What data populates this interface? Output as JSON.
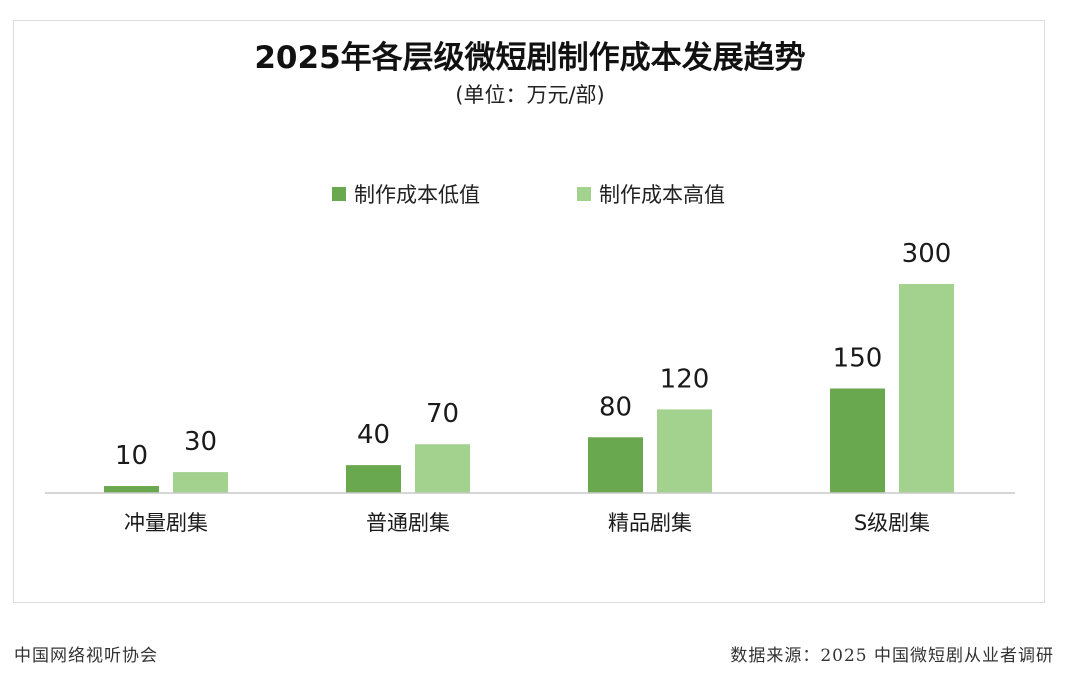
{
  "chart_data": {
    "type": "bar",
    "title": "2025年各层级微短剧制作成本发展趋势",
    "subtitle": "(单位：万元/部)",
    "categories": [
      "冲量剧集",
      "普通剧集",
      "精品剧集",
      "S级剧集"
    ],
    "series": [
      {
        "name": "制作成本低值",
        "values": [
          10,
          40,
          80,
          150
        ],
        "color": "#6aa84f"
      },
      {
        "name": "制作成本高值",
        "values": [
          30,
          70,
          120,
          300
        ],
        "color": "#a3d18e"
      }
    ],
    "ylim": [
      0,
      300
    ],
    "grid": false,
    "legend_position": "top-center"
  },
  "footer": {
    "left": "中国网络视听协会",
    "right": "数据来源：2025 中国微短剧从业者调研"
  }
}
